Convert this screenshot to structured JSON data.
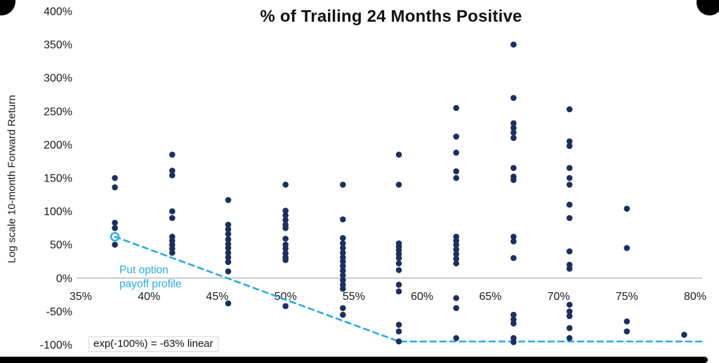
{
  "title": "% of Trailing 24 Months Positive",
  "y_axis_label": "Log scale 10-month Forward Return",
  "annotations": {
    "put_option_label": "Put option\npayoff profile",
    "linear_note": "exp(-100%) = -63% linear"
  },
  "colors": {
    "point": "#1c2f5e",
    "put_line": "#29abe2",
    "axis_line": "#a6a6a6",
    "tick_text": "#1a1a1a",
    "title_text": "#111111"
  },
  "chart_data": {
    "type": "scatter",
    "title": "% of Trailing 24 Months Positive",
    "xlabel": "",
    "ylabel": "Log scale 10-month Forward Return",
    "xlim": [
      35,
      80
    ],
    "ylim": [
      -100,
      400
    ],
    "x_ticks": [
      35,
      40,
      45,
      50,
      55,
      60,
      65,
      70,
      75,
      80
    ],
    "y_ticks": [
      400,
      350,
      300,
      250,
      200,
      150,
      100,
      50,
      0,
      -50,
      -100
    ],
    "tick_suffix": "%",
    "grid": false,
    "legend": "none",
    "series": [
      {
        "name": "10-month forward return vs % of trailing 24 months positive",
        "points": [
          [
            37.5,
            150
          ],
          [
            37.5,
            136
          ],
          [
            37.5,
            83
          ],
          [
            37.5,
            75
          ],
          [
            37.5,
            50
          ],
          [
            41.7,
            185
          ],
          [
            41.7,
            161
          ],
          [
            41.7,
            154
          ],
          [
            41.7,
            100
          ],
          [
            41.7,
            90
          ],
          [
            41.7,
            62
          ],
          [
            41.7,
            56
          ],
          [
            41.7,
            50
          ],
          [
            41.7,
            44
          ],
          [
            41.7,
            38
          ],
          [
            45.8,
            117
          ],
          [
            45.8,
            80
          ],
          [
            45.8,
            73
          ],
          [
            45.8,
            66
          ],
          [
            45.8,
            58
          ],
          [
            45.8,
            51
          ],
          [
            45.8,
            45
          ],
          [
            45.8,
            38
          ],
          [
            45.8,
            31
          ],
          [
            45.8,
            24
          ],
          [
            45.8,
            10
          ],
          [
            45.8,
            -38
          ],
          [
            50,
            140
          ],
          [
            50,
            101
          ],
          [
            50,
            94
          ],
          [
            50,
            87
          ],
          [
            50,
            80
          ],
          [
            50,
            75
          ],
          [
            50,
            59
          ],
          [
            50,
            50
          ],
          [
            50,
            44
          ],
          [
            50,
            37
          ],
          [
            50,
            31
          ],
          [
            50,
            27
          ],
          [
            50,
            -42
          ],
          [
            54.2,
            140
          ],
          [
            54.2,
            88
          ],
          [
            54.2,
            60
          ],
          [
            54.2,
            52
          ],
          [
            54.2,
            45
          ],
          [
            54.2,
            38
          ],
          [
            54.2,
            31
          ],
          [
            54.2,
            25
          ],
          [
            54.2,
            18
          ],
          [
            54.2,
            11
          ],
          [
            54.2,
            4
          ],
          [
            54.2,
            -3
          ],
          [
            54.2,
            -10
          ],
          [
            54.2,
            -16
          ],
          [
            54.2,
            -45
          ],
          [
            54.2,
            -55
          ],
          [
            58.3,
            185
          ],
          [
            58.3,
            140
          ],
          [
            58.3,
            52
          ],
          [
            58.3,
            47
          ],
          [
            58.3,
            42
          ],
          [
            58.3,
            36
          ],
          [
            58.3,
            30
          ],
          [
            58.3,
            22
          ],
          [
            58.3,
            12
          ],
          [
            58.3,
            -10
          ],
          [
            58.3,
            -20
          ],
          [
            58.3,
            -70
          ],
          [
            58.3,
            -80
          ],
          [
            58.3,
            -95
          ],
          [
            62.5,
            255
          ],
          [
            62.5,
            212
          ],
          [
            62.5,
            188
          ],
          [
            62.5,
            160
          ],
          [
            62.5,
            150
          ],
          [
            62.5,
            62
          ],
          [
            62.5,
            56
          ],
          [
            62.5,
            50
          ],
          [
            62.5,
            43
          ],
          [
            62.5,
            36
          ],
          [
            62.5,
            29
          ],
          [
            62.5,
            22
          ],
          [
            62.5,
            -30
          ],
          [
            62.5,
            -45
          ],
          [
            62.5,
            -90
          ],
          [
            66.7,
            350
          ],
          [
            66.7,
            270
          ],
          [
            66.7,
            232
          ],
          [
            66.7,
            225
          ],
          [
            66.7,
            218
          ],
          [
            66.7,
            210
          ],
          [
            66.7,
            165
          ],
          [
            66.7,
            152
          ],
          [
            66.7,
            147
          ],
          [
            66.7,
            62
          ],
          [
            66.7,
            55
          ],
          [
            66.7,
            30
          ],
          [
            66.7,
            -55
          ],
          [
            66.7,
            -62
          ],
          [
            66.7,
            -68
          ],
          [
            66.7,
            -90
          ],
          [
            66.7,
            -96
          ],
          [
            70.8,
            253
          ],
          [
            70.8,
            205
          ],
          [
            70.8,
            198
          ],
          [
            70.8,
            165
          ],
          [
            70.8,
            150
          ],
          [
            70.8,
            140
          ],
          [
            70.8,
            110
          ],
          [
            70.8,
            90
          ],
          [
            70.8,
            40
          ],
          [
            70.8,
            20
          ],
          [
            70.8,
            14
          ],
          [
            70.8,
            -40
          ],
          [
            70.8,
            -50
          ],
          [
            70.8,
            -57
          ],
          [
            70.8,
            -75
          ],
          [
            70.8,
            -90
          ],
          [
            75,
            104
          ],
          [
            75,
            45
          ],
          [
            75,
            -65
          ],
          [
            75,
            -80
          ],
          [
            79.2,
            -85
          ]
        ]
      }
    ],
    "put_option_line": {
      "name": "Put option payoff profile",
      "style": "dashed",
      "points": [
        [
          37.5,
          62
        ],
        [
          58.3,
          -95
        ],
        [
          80.5,
          -95
        ]
      ],
      "start_marker": [
        37.5,
        62
      ]
    }
  }
}
